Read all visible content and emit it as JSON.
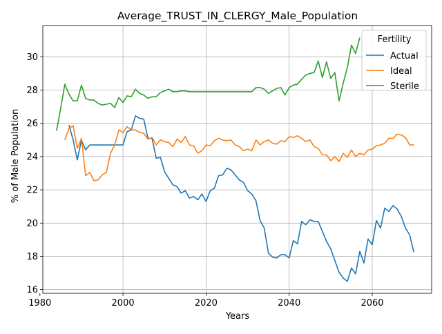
{
  "chart_data": {
    "type": "line",
    "title": "Average_TRUST_IN_CLERGY_Male_Population",
    "xlabel": "Years",
    "ylabel": "% of Male Population",
    "xlim": [
      1980.7,
      2074.3
    ],
    "ylim": [
      15.78,
      31.88
    ],
    "xticks": [
      1980,
      2000,
      2020,
      2040,
      2060
    ],
    "xtick_labels": [
      "1980",
      "2000",
      "2020",
      "2040",
      "2060"
    ],
    "yticks": [
      16,
      18,
      20,
      22,
      24,
      26,
      28,
      30
    ],
    "ytick_labels": [
      "16",
      "18",
      "20",
      "22",
      "24",
      "26",
      "28",
      "30"
    ],
    "grid": true,
    "legend": {
      "title": "Fertility",
      "placement": "top-right"
    },
    "series": [
      {
        "name": "Actual",
        "color": "#1f77b4",
        "x": [
          1987,
          1988,
          1989,
          1990,
          1991,
          1992,
          1993,
          1994,
          1995,
          1996,
          1997,
          1998,
          1999,
          2000,
          2001,
          2002,
          2003,
          2004,
          2005,
          2006,
          2007,
          2008,
          2009,
          2010,
          2011,
          2012,
          2013,
          2014,
          2015,
          2016,
          2017,
          2018,
          2019,
          2020,
          2021,
          2022,
          2023,
          2024,
          2025,
          2026,
          2027,
          2028,
          2029,
          2030,
          2031,
          2032,
          2033,
          2034,
          2035,
          2036,
          2037,
          2038,
          2039,
          2040,
          2041,
          2042,
          2043,
          2044,
          2045,
          2046,
          2047,
          2048,
          2049,
          2050,
          2051,
          2052,
          2053,
          2054,
          2055,
          2056,
          2057,
          2058,
          2059,
          2060,
          2061,
          2062,
          2063,
          2064,
          2065,
          2066,
          2067,
          2068,
          2069,
          2070
        ],
        "values": [
          25.9,
          25.0,
          23.8,
          25.0,
          24.4,
          24.7,
          24.7,
          24.7,
          24.7,
          24.7,
          24.7,
          24.7,
          24.7,
          24.7,
          25.5,
          25.6,
          26.45,
          26.3,
          26.25,
          25.1,
          25.1,
          23.9,
          23.95,
          23.1,
          22.7,
          22.3,
          22.2,
          21.8,
          21.95,
          21.5,
          21.6,
          21.4,
          21.75,
          21.3,
          21.95,
          22.1,
          22.85,
          22.9,
          23.3,
          23.2,
          22.9,
          22.6,
          22.45,
          21.95,
          21.75,
          21.35,
          20.15,
          19.7,
          18.2,
          17.95,
          17.9,
          18.1,
          18.1,
          17.9,
          18.95,
          18.75,
          20.1,
          19.9,
          20.2,
          20.1,
          20.1,
          19.5,
          18.9,
          18.45,
          17.75,
          17.05,
          16.7,
          16.5,
          17.3,
          16.95,
          18.3,
          17.6,
          19.05,
          18.7,
          20.15,
          19.7,
          20.9,
          20.7,
          21.05,
          20.85,
          20.4,
          19.7,
          19.3,
          18.25
        ]
      },
      {
        "name": "Ideal",
        "color": "#ff7f0e",
        "x": [
          1986,
          1987,
          1988,
          1989,
          1990,
          1991,
          1992,
          1993,
          1994,
          1995,
          1996,
          1997,
          1998,
          1999,
          2000,
          2001,
          2002,
          2003,
          2004,
          2005,
          2006,
          2007,
          2008,
          2009,
          2010,
          2011,
          2012,
          2013,
          2014,
          2015,
          2016,
          2017,
          2018,
          2019,
          2020,
          2021,
          2022,
          2023,
          2024,
          2025,
          2026,
          2027,
          2028,
          2029,
          2030,
          2031,
          2032,
          2033,
          2034,
          2035,
          2036,
          2037,
          2038,
          2039,
          2040,
          2041,
          2042,
          2043,
          2044,
          2045,
          2046,
          2047,
          2048,
          2049,
          2050,
          2051,
          2052,
          2053,
          2054,
          2055,
          2056,
          2057,
          2058,
          2059,
          2060,
          2061,
          2062,
          2063,
          2064,
          2065,
          2066,
          2067,
          2068,
          2069,
          2070
        ],
        "values": [
          25.0,
          25.7,
          25.85,
          24.5,
          25.1,
          22.85,
          23.05,
          22.55,
          22.6,
          22.9,
          23.05,
          24.2,
          24.7,
          25.6,
          25.45,
          25.8,
          25.6,
          25.6,
          25.45,
          25.4,
          25.05,
          25.15,
          24.7,
          25.0,
          24.9,
          24.85,
          24.6,
          25.05,
          24.85,
          25.2,
          24.7,
          24.65,
          24.2,
          24.35,
          24.7,
          24.65,
          24.95,
          25.1,
          25.0,
          24.95,
          25.0,
          24.7,
          24.6,
          24.35,
          24.45,
          24.35,
          25.0,
          24.7,
          24.9,
          25.0,
          24.8,
          24.75,
          24.95,
          24.9,
          25.2,
          25.15,
          25.25,
          25.1,
          24.9,
          25.0,
          24.6,
          24.5,
          24.1,
          24.1,
          23.75,
          24.0,
          23.7,
          24.2,
          23.95,
          24.4,
          24.0,
          24.2,
          24.1,
          24.4,
          24.45,
          24.65,
          24.7,
          24.8,
          25.1,
          25.1,
          25.35,
          25.3,
          25.15,
          24.7,
          24.7
        ]
      },
      {
        "name": "Sterile",
        "color": "#2ca02c",
        "x": [
          1984,
          1985,
          1986,
          1987,
          1988,
          1989,
          1990,
          1991,
          1992,
          1993,
          1994,
          1995,
          1996,
          1997,
          1998,
          1999,
          2000,
          2001,
          2002,
          2003,
          2004,
          2005,
          2006,
          2007,
          2008,
          2009,
          2010,
          2011,
          2012,
          2013,
          2014,
          2015,
          2016,
          2017,
          2018,
          2019,
          2020,
          2021,
          2022,
          2023,
          2024,
          2025,
          2026,
          2027,
          2028,
          2029,
          2030,
          2031,
          2032,
          2033,
          2034,
          2035,
          2036,
          2037,
          2038,
          2039,
          2040,
          2041,
          2042,
          2043,
          2044,
          2045,
          2046,
          2047,
          2048,
          2049,
          2050,
          2051,
          2052,
          2053,
          2054,
          2055,
          2056,
          2057
        ],
        "values": [
          25.55,
          26.9,
          28.35,
          27.75,
          27.35,
          27.35,
          28.3,
          27.5,
          27.4,
          27.4,
          27.2,
          27.1,
          27.15,
          27.2,
          26.95,
          27.55,
          27.25,
          27.65,
          27.6,
          28.05,
          27.8,
          27.7,
          27.5,
          27.6,
          27.6,
          27.85,
          27.95,
          28.05,
          27.9,
          27.9,
          27.95,
          27.95,
          27.9,
          27.9,
          27.9,
          27.9,
          27.9,
          27.9,
          27.9,
          27.9,
          27.9,
          27.9,
          27.9,
          27.9,
          27.9,
          27.9,
          27.9,
          27.9,
          28.15,
          28.15,
          28.05,
          27.8,
          27.95,
          28.1,
          28.15,
          27.7,
          28.15,
          28.3,
          28.35,
          28.65,
          28.9,
          29.0,
          29.05,
          29.75,
          28.75,
          29.7,
          28.7,
          29.05,
          27.35,
          28.4,
          29.35,
          30.7,
          30.2,
          31.15
        ]
      }
    ]
  }
}
